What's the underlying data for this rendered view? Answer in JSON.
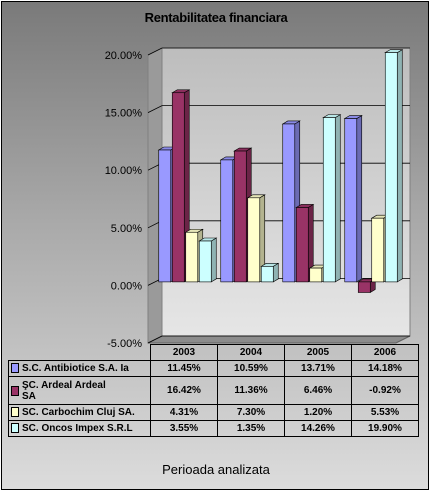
{
  "chart_data": {
    "type": "bar",
    "title": "Rentabilitatea financiara",
    "xlabel": "Perioada analizata",
    "ylabel": "",
    "categories": [
      "2003",
      "2004",
      "2005",
      "2006"
    ],
    "ylim": [
      -0.05,
      0.2
    ],
    "yticks": [
      "20.00%",
      "15.00%",
      "10.00%",
      "5.00%",
      "0.00%",
      "-5.00%"
    ],
    "grid": true,
    "legend": "data table",
    "series": [
      {
        "name": "S.C. Antibiotice S.A. Ia",
        "values": [
          0.1145,
          0.1059,
          0.1371,
          0.1418
        ],
        "labels": [
          "11.45%",
          "10.59%",
          "13.71%",
          "14.18%"
        ],
        "color": "#9999ff"
      },
      {
        "name": "ŞC. Ardeal Ardeal SA",
        "values": [
          0.1642,
          0.1136,
          0.0646,
          -0.0092
        ],
        "labels": [
          "16.42%",
          "11.36%",
          "6.46%",
          "-0.92%"
        ],
        "color": "#993366"
      },
      {
        "name": "SC. Carbochim Cluj SA.",
        "values": [
          0.0431,
          0.073,
          0.012,
          0.0553
        ],
        "labels": [
          "4.31%",
          "7.30%",
          "1.20%",
          "5.53%"
        ],
        "color": "#ffffcc"
      },
      {
        "name": "SC. Oncos Impex S.R.L",
        "values": [
          0.0355,
          0.0135,
          0.1426,
          0.199
        ],
        "labels": [
          "3.55%",
          "1.35%",
          "14.26%",
          "19.90%"
        ],
        "color": "#ccffff"
      }
    ]
  }
}
